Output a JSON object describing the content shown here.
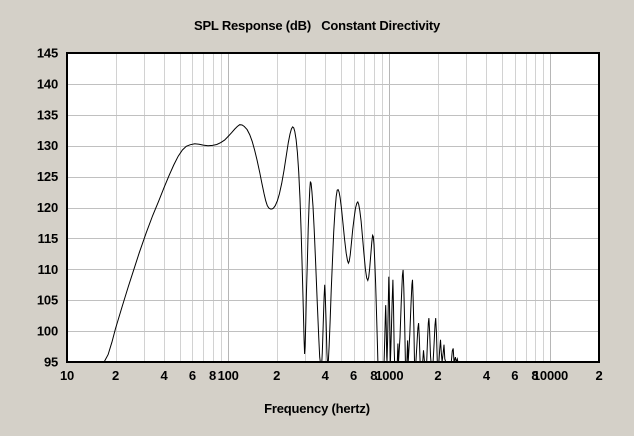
{
  "chart_data": {
    "type": "line",
    "title": "SPL Response (dB)   Constant Directivity",
    "xlabel": "Frequency (hertz)",
    "x_scale": "log",
    "xlim": [
      10,
      20000
    ],
    "ylim": [
      95,
      145
    ],
    "grid": true,
    "legend": "none",
    "y_ticks": [
      95,
      100,
      105,
      110,
      115,
      120,
      125,
      130,
      135,
      140,
      145
    ],
    "x_ticks": [
      {
        "value": 10,
        "label": "10"
      },
      {
        "value": 20,
        "label": "2"
      },
      {
        "value": 40,
        "label": "4"
      },
      {
        "value": 60,
        "label": "6"
      },
      {
        "value": 80,
        "label": "8"
      },
      {
        "value": 100,
        "label": "100"
      },
      {
        "value": 200,
        "label": "2"
      },
      {
        "value": 400,
        "label": "4"
      },
      {
        "value": 600,
        "label": "6"
      },
      {
        "value": 800,
        "label": "8"
      },
      {
        "value": 1000,
        "label": "1000"
      },
      {
        "value": 2000,
        "label": "2"
      },
      {
        "value": 4000,
        "label": "4"
      },
      {
        "value": 6000,
        "label": "6"
      },
      {
        "value": 8000,
        "label": "8"
      },
      {
        "value": 10000,
        "label": "10000"
      },
      {
        "value": 20000,
        "label": "2"
      }
    ],
    "minor_grid_x": [
      20,
      30,
      40,
      50,
      60,
      70,
      80,
      90,
      200,
      300,
      400,
      500,
      600,
      700,
      800,
      900,
      2000,
      3000,
      4000,
      5000,
      6000,
      7000,
      8000,
      9000
    ],
    "major_grid_x": [
      100,
      1000,
      10000
    ],
    "colors": {
      "background": "#d4d0c8",
      "plot_background": "#ffffff",
      "frame": "#000000",
      "grid_horizontal": "#c0c0c0",
      "grid_minor": "#d2d2d2",
      "grid_major": "#b6b6b6",
      "line": "#000000"
    },
    "series": [
      {
        "name": "SPL Response",
        "color": "#000000",
        "points": [
          [
            10,
            95
          ],
          [
            17,
            95
          ],
          [
            18,
            96.2
          ],
          [
            19,
            98.2
          ],
          [
            20,
            100.4
          ],
          [
            22,
            104
          ],
          [
            24,
            107.2
          ],
          [
            26,
            110
          ],
          [
            28,
            112.6
          ],
          [
            31,
            115.9
          ],
          [
            34,
            118.7
          ],
          [
            37,
            121
          ],
          [
            40,
            123.2
          ],
          [
            43,
            125.2
          ],
          [
            46,
            126.9
          ],
          [
            49,
            128.3
          ],
          [
            52,
            129.3
          ],
          [
            55,
            129.9
          ],
          [
            58,
            130.15
          ],
          [
            62,
            130.3
          ],
          [
            66,
            130.25
          ],
          [
            70,
            130.1
          ],
          [
            75,
            130
          ],
          [
            80,
            130.05
          ],
          [
            85,
            130.2
          ],
          [
            90,
            130.5
          ],
          [
            95,
            130.9
          ],
          [
            100,
            131.5
          ],
          [
            105,
            132.1
          ],
          [
            110,
            132.7
          ],
          [
            114,
            133.1
          ],
          [
            118,
            133.4
          ],
          [
            122,
            133.35
          ],
          [
            126,
            133.1
          ],
          [
            131,
            132.6
          ],
          [
            136,
            131.8
          ],
          [
            141,
            130.7
          ],
          [
            146,
            129.3
          ],
          [
            151,
            127.7
          ],
          [
            157,
            125.7
          ],
          [
            162,
            123.9
          ],
          [
            167,
            122.2
          ],
          [
            171,
            121.1
          ],
          [
            175,
            120.3
          ],
          [
            179,
            119.9
          ],
          [
            183,
            119.75
          ],
          [
            187,
            119.75
          ],
          [
            191,
            119.9
          ],
          [
            196,
            120.3
          ],
          [
            202,
            121.1
          ],
          [
            208,
            122.2
          ],
          [
            215,
            123.9
          ],
          [
            222,
            126
          ],
          [
            229,
            128.3
          ],
          [
            236,
            130.5
          ],
          [
            242,
            131.9
          ],
          [
            247,
            132.7
          ],
          [
            251,
            133.05
          ],
          [
            255,
            132.9
          ],
          [
            259,
            132.3
          ],
          [
            264,
            131
          ],
          [
            269,
            128.9
          ],
          [
            274,
            125.8
          ],
          [
            279,
            121.4
          ],
          [
            284,
            115.8
          ],
          [
            289,
            109
          ],
          [
            293,
            103
          ],
          [
            296,
            98.5
          ],
          [
            298,
            96.3
          ],
          [
            300,
            97.5
          ],
          [
            303,
            101.5
          ],
          [
            306,
            106
          ],
          [
            310,
            111.5
          ],
          [
            314,
            116.5
          ],
          [
            318,
            120.5
          ],
          [
            321,
            123
          ],
          [
            324,
            124.2
          ],
          [
            327,
            123.9
          ],
          [
            331,
            122.6
          ],
          [
            336,
            120.2
          ],
          [
            342,
            116.4
          ],
          [
            349,
            111.2
          ],
          [
            357,
            104.8
          ],
          [
            365,
            98.8
          ],
          [
            370,
            95.8
          ],
          [
            373,
            95
          ],
          [
            381,
            95
          ],
          [
            384,
            96.5
          ],
          [
            389,
            101
          ],
          [
            394,
            105.5
          ],
          [
            397,
            107.5
          ],
          [
            400,
            106
          ],
          [
            405,
            101.5
          ],
          [
            410,
            96.5
          ],
          [
            413,
            95
          ],
          [
            418,
            95
          ],
          [
            423,
            97.5
          ],
          [
            429,
            101.5
          ],
          [
            436,
            106.5
          ],
          [
            444,
            111.5
          ],
          [
            452,
            116
          ],
          [
            460,
            119.5
          ],
          [
            468,
            121.8
          ],
          [
            475,
            122.8
          ],
          [
            481,
            122.9
          ],
          [
            488,
            122.5
          ],
          [
            495,
            121.6
          ],
          [
            505,
            119.8
          ],
          [
            516,
            117.4
          ],
          [
            528,
            114.8
          ],
          [
            540,
            112.6
          ],
          [
            550,
            111.4
          ],
          [
            557,
            111
          ],
          [
            564,
            111.3
          ],
          [
            572,
            112.3
          ],
          [
            582,
            114.2
          ],
          [
            593,
            116.4
          ],
          [
            605,
            118.4
          ],
          [
            617,
            119.9
          ],
          [
            628,
            120.7
          ],
          [
            637,
            120.9
          ],
          [
            646,
            120.5
          ],
          [
            656,
            119.5
          ],
          [
            668,
            117.8
          ],
          [
            681,
            115.4
          ],
          [
            695,
            112.6
          ],
          [
            710,
            110
          ],
          [
            724,
            108.6
          ],
          [
            735,
            108.2
          ],
          [
            745,
            108.7
          ],
          [
            756,
            110.2
          ],
          [
            768,
            112.4
          ],
          [
            779,
            114.4
          ],
          [
            788,
            115.5
          ],
          [
            795,
            115.3
          ],
          [
            803,
            114
          ],
          [
            812,
            111.5
          ],
          [
            822,
            107.8
          ],
          [
            833,
            103
          ],
          [
            843,
            98
          ],
          [
            850,
            95
          ],
          [
            928,
            95
          ],
          [
            938,
            99
          ],
          [
            945,
            102.8
          ],
          [
            950,
            104.2
          ],
          [
            956,
            101
          ],
          [
            963,
            96
          ],
          [
            968,
            95
          ],
          [
            975,
            98.5
          ],
          [
            985,
            104.5
          ],
          [
            993,
            108.8
          ],
          [
            1000,
            106
          ],
          [
            1008,
            100
          ],
          [
            1015,
            95
          ],
          [
            1025,
            98.5
          ],
          [
            1040,
            104.5
          ],
          [
            1052,
            108.3
          ],
          [
            1062,
            104
          ],
          [
            1072,
            97
          ],
          [
            1078,
            95
          ],
          [
            1120,
            95
          ],
          [
            1130,
            98
          ],
          [
            1140,
            95
          ],
          [
            1165,
            99
          ],
          [
            1185,
            104.5
          ],
          [
            1205,
            109
          ],
          [
            1218,
            109.9
          ],
          [
            1230,
            107
          ],
          [
            1245,
            101
          ],
          [
            1258,
            95
          ],
          [
            1285,
            95
          ],
          [
            1298,
            98.5
          ],
          [
            1310,
            95
          ],
          [
            1340,
            99.5
          ],
          [
            1362,
            104
          ],
          [
            1380,
            107.5
          ],
          [
            1392,
            108.3
          ],
          [
            1405,
            105.5
          ],
          [
            1420,
            100.5
          ],
          [
            1432,
            95
          ],
          [
            1462,
            95
          ],
          [
            1480,
            97.5
          ],
          [
            1505,
            100.5
          ],
          [
            1520,
            101.3
          ],
          [
            1535,
            99
          ],
          [
            1552,
            95
          ],
          [
            1610,
            95
          ],
          [
            1630,
            96.9
          ],
          [
            1652,
            95
          ],
          [
            1705,
            95
          ],
          [
            1725,
            98.5
          ],
          [
            1745,
            101.3
          ],
          [
            1760,
            102.1
          ],
          [
            1778,
            100
          ],
          [
            1800,
            96
          ],
          [
            1815,
            95
          ],
          [
            1870,
            95
          ],
          [
            1895,
            98
          ],
          [
            1920,
            101
          ],
          [
            1940,
            102.1
          ],
          [
            1962,
            99.5
          ],
          [
            1985,
            95
          ],
          [
            2030,
            95
          ],
          [
            2055,
            97
          ],
          [
            2078,
            98.6
          ],
          [
            2100,
            96.5
          ],
          [
            2125,
            95
          ],
          [
            2160,
            96.5
          ],
          [
            2185,
            97.8
          ],
          [
            2210,
            95.5
          ],
          [
            2240,
            95
          ],
          [
            2425,
            95
          ],
          [
            2460,
            96.8
          ],
          [
            2490,
            97.2
          ],
          [
            2520,
            95
          ],
          [
            2570,
            95.8
          ],
          [
            2600,
            95
          ],
          [
            2640,
            95.5
          ],
          [
            2665,
            95
          ],
          [
            20000,
            95
          ]
        ]
      }
    ]
  }
}
